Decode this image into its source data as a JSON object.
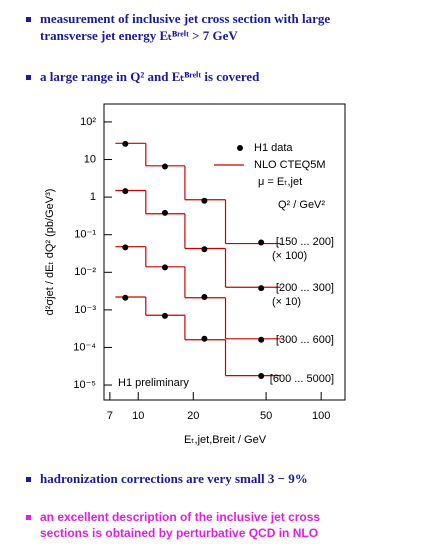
{
  "bullets_top": [
    [
      "measurement of inclusive jet cross section with large",
      "transverse jet energy Eₜᴮʳᵉⁱᵗ > 7 GeV"
    ],
    [
      "a large range in Q² and Eₜᴮʳᵉⁱᵗ is covered"
    ]
  ],
  "bullets_bottom": [
    [
      "hadronization corrections are very small 3 − 9%"
    ],
    [
      "an excellent description of the inclusive jet cross",
      "sections is obtained by perturbative QCD in NLO"
    ]
  ],
  "chart_data": {
    "type": "step",
    "x_label": "Eₜ,jet,Breit / GeV",
    "y_label": "d²σjet / dEₜ dQ²  (pb/GeV³)",
    "legend": {
      "data": "H1 data",
      "nlo": "NLO  CTEQ5M",
      "scale": "μ = Eₜ,jet",
      "group_title": "Q² / GeV²"
    },
    "annotation": "H1 preliminary",
    "log_x": true,
    "log_y": true,
    "xlim": [
      6.5,
      135
    ],
    "ylim": [
      4e-06,
      300
    ],
    "xticks": [
      7,
      10,
      20,
      50,
      100
    ],
    "yticks": [
      {
        "value": 100,
        "label": "10²"
      },
      10,
      1,
      {
        "value": 0.1,
        "label": "10⁻¹"
      },
      {
        "value": 0.01,
        "label": "10⁻²"
      },
      {
        "value": 0.001,
        "label": "10⁻³"
      },
      {
        "value": 0.0001,
        "label": "10⁻⁴"
      },
      {
        "value": 1e-05,
        "label": "10⁻⁵"
      }
    ],
    "bins": [
      7.5,
      11,
      18,
      30,
      60
    ],
    "x": [
      8.5,
      14,
      23,
      47
    ],
    "data_color": "#000000",
    "nlo_color": "#cc0000",
    "series": [
      {
        "name": "[150 ... 200]",
        "scale_label": "(× 100)",
        "values": [
          26,
          6.5,
          0.8,
          0.062
        ],
        "nlo": [
          27,
          6.8,
          0.85,
          0.058
        ]
      },
      {
        "name": "[200 ... 300]",
        "scale_label": "(× 10)",
        "values": [
          1.44,
          0.38,
          0.041,
          0.0038
        ],
        "nlo": [
          1.5,
          0.36,
          0.043,
          0.004
        ]
      },
      {
        "name": "[300 ... 600]",
        "values": [
          0.046,
          0.0135,
          0.0022,
          0.00016
        ],
        "nlo": [
          0.048,
          0.014,
          0.0021,
          0.00017
        ]
      },
      {
        "name": "[600 ... 5000]",
        "values": [
          0.0021,
          0.00069,
          0.00017,
          1.74e-05
        ],
        "nlo": [
          0.0022,
          0.00072,
          0.00016,
          1.78e-05
        ]
      }
    ]
  }
}
